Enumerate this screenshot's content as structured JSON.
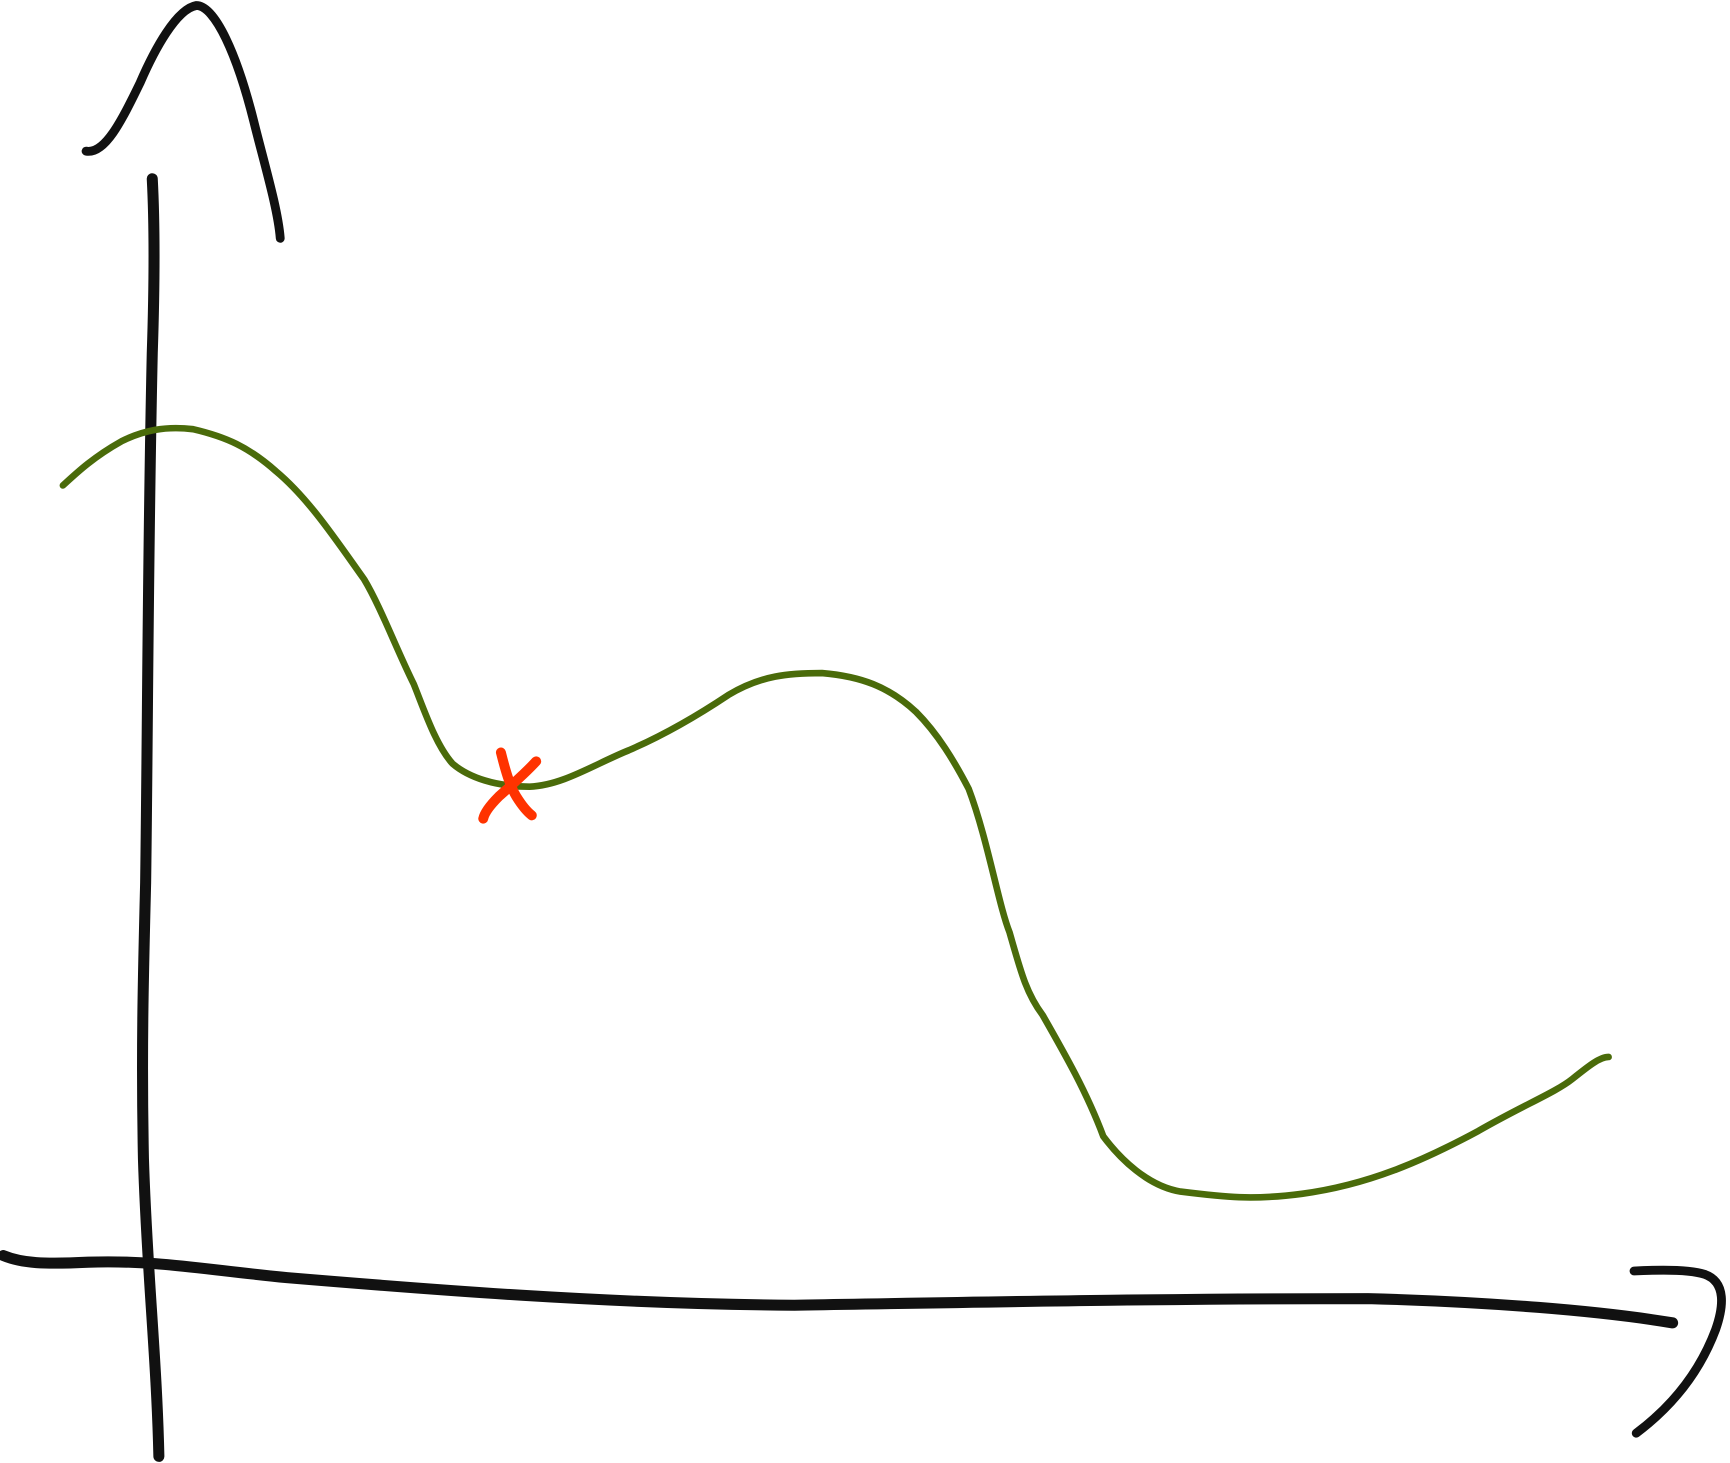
{
  "sketch": {
    "axis_color": "#111111",
    "curve_color": "#4a6b0a",
    "marker_color": "#ff3300",
    "marker_icon": "x-mark-icon",
    "arrow_icon": "arrowhead-icon"
  }
}
